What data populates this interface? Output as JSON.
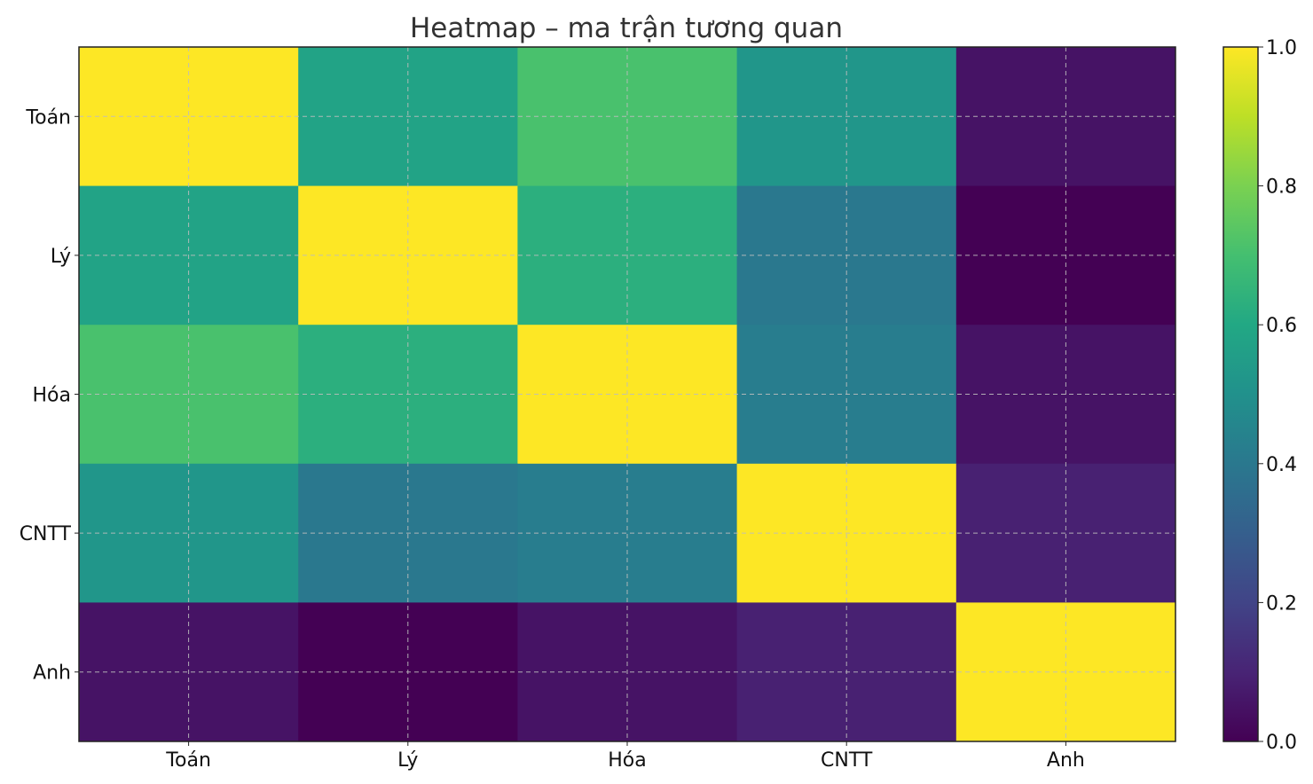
{
  "chart_data": {
    "type": "heatmap",
    "title": "Heatmap – ma trận tương quan",
    "x_categories": [
      "Toán",
      "Lý",
      "Hóa",
      "CNTT",
      "Anh"
    ],
    "y_categories": [
      "Toán",
      "Lý",
      "Hóa",
      "CNTT",
      "Anh"
    ],
    "values": [
      [
        1.0,
        0.58,
        0.71,
        0.52,
        0.05
      ],
      [
        0.58,
        1.0,
        0.63,
        0.4,
        0.0
      ],
      [
        0.71,
        0.63,
        1.0,
        0.42,
        0.05
      ],
      [
        0.52,
        0.4,
        0.42,
        1.0,
        0.09
      ],
      [
        0.05,
        0.0,
        0.05,
        0.09,
        1.0
      ]
    ],
    "colormap": "viridis",
    "value_range": [
      0.0,
      1.0
    ],
    "colorbar_ticks": [
      "0.0",
      "0.2",
      "0.4",
      "0.6",
      "0.8",
      "1.0"
    ],
    "grid": true,
    "colorbar": "right"
  }
}
